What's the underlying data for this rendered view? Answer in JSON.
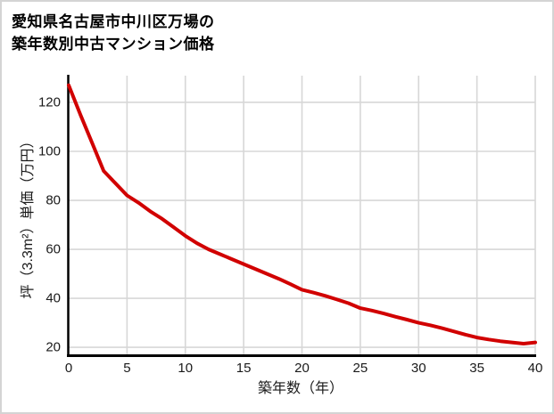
{
  "title": {
    "line1": "愛知県名古屋市中川区万場の",
    "line2": "築年数別中古マンション価格"
  },
  "chart_data": {
    "type": "line",
    "title": "愛知県名古屋市中川区万場の築年数別中古マンション価格",
    "xlabel": "築年数（年）",
    "ylabel": "坪（3.3m²）単価（万円）",
    "x": [
      0,
      1,
      2,
      3,
      4,
      5,
      6,
      7,
      8,
      9,
      10,
      11,
      12,
      13,
      14,
      15,
      16,
      17,
      18,
      19,
      20,
      21,
      22,
      23,
      24,
      25,
      26,
      27,
      28,
      29,
      30,
      31,
      32,
      33,
      34,
      35,
      36,
      37,
      38,
      39,
      40
    ],
    "series": [
      {
        "name": "坪（3.3m²）単価（万円）",
        "values": [
          127,
          115,
          103.5,
          92,
          87,
          82,
          79,
          75.5,
          72.5,
          69,
          65.5,
          62.5,
          60,
          58,
          56,
          54,
          52,
          50,
          48,
          45.8,
          43.5,
          42.3,
          41,
          39.5,
          38,
          36,
          35,
          33.8,
          32.5,
          31.3,
          30,
          29,
          27.8,
          26.5,
          25.2,
          24,
          23.2,
          22.5,
          22,
          21.5,
          22
        ]
      }
    ],
    "xticks": [
      0,
      5,
      10,
      15,
      20,
      25,
      30,
      35,
      40
    ],
    "yticks": [
      20,
      40,
      60,
      80,
      100,
      120
    ],
    "xlim": [
      0,
      40
    ],
    "ylim": [
      16.4,
      130.9
    ],
    "grid": true,
    "legend": false,
    "line_color": "#d10000"
  },
  "colors": {
    "line": "#d10000",
    "grid": "#d7d7d7",
    "axis": "#000000",
    "text": "#1a1a1a",
    "border": "#d4d4d4",
    "background": "#ffffff"
  }
}
